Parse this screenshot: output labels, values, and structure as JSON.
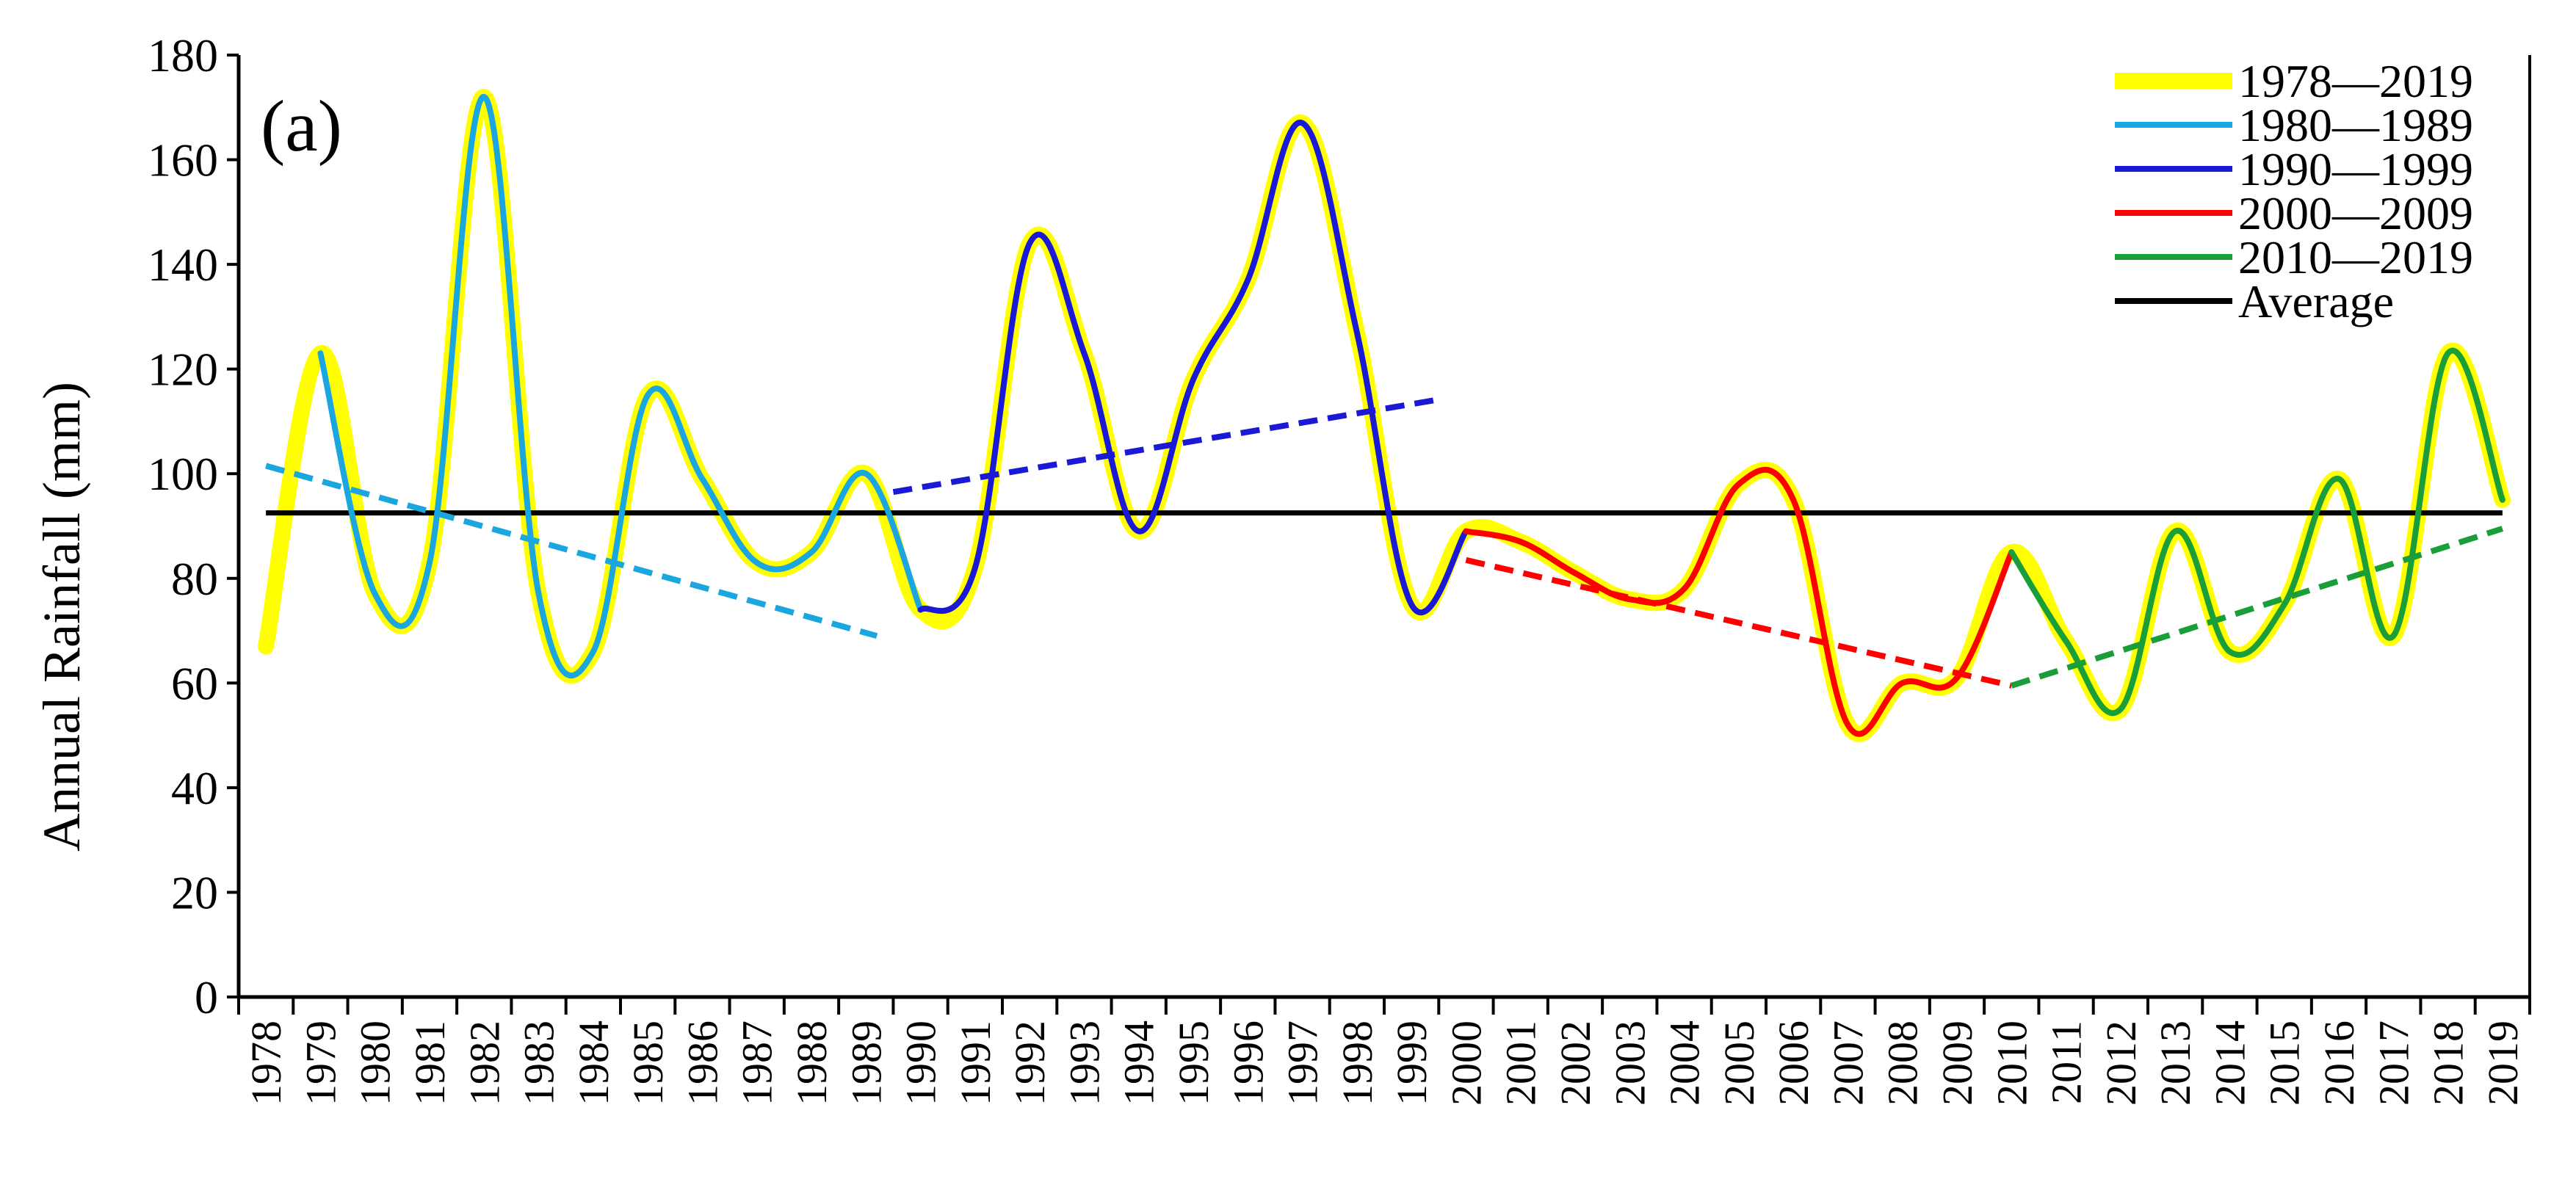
{
  "chart_data": {
    "type": "line",
    "panel_label": "(a)",
    "ylabel": "Annual Rainfall (mm)",
    "xlabel": "",
    "ylim": [
      0,
      180
    ],
    "yticks": [
      0,
      20,
      40,
      60,
      80,
      100,
      120,
      140,
      160,
      180
    ],
    "x": [
      1978,
      1979,
      1980,
      1981,
      1982,
      1983,
      1984,
      1985,
      1986,
      1987,
      1988,
      1989,
      1990,
      1991,
      1992,
      1993,
      1994,
      1995,
      1996,
      1997,
      1998,
      1999,
      2000,
      2001,
      2002,
      2003,
      2004,
      2005,
      2006,
      2007,
      2008,
      2009,
      2010,
      2011,
      2012,
      2013,
      2014,
      2015,
      2016,
      2017,
      2018,
      2019
    ],
    "xtick_labels": [
      "1978",
      "1979",
      "1980",
      "1981",
      "1982",
      "1983",
      "1984",
      "1985",
      "1986",
      "1987",
      "1988",
      "1989",
      "1990",
      "1991",
      "1992",
      "1993",
      "1994",
      "1995",
      "1996",
      "1997",
      "1998",
      "1999",
      "2000",
      "2001",
      "2002",
      "2003",
      "2004",
      "2005",
      "2006",
      "2007",
      "2008",
      "2009",
      "2010",
      "2011",
      "2012",
      "2013",
      "2014",
      "2015",
      "2016",
      "2017",
      "2018",
      "2019"
    ],
    "values": [
      67,
      123,
      77,
      83,
      172,
      77,
      66,
      115,
      99,
      83,
      85,
      100,
      74,
      82,
      144,
      123,
      89,
      118,
      137,
      167,
      127,
      75,
      89,
      87,
      81,
      76,
      78,
      98,
      95,
      52,
      60,
      61,
      85,
      68,
      55,
      89,
      66,
      75,
      99,
      69,
      123,
      95
    ],
    "average": 92.5,
    "grid": false,
    "legend_position": "top-right",
    "series": [
      {
        "name": "1978—2019",
        "color": "#ffff00",
        "range": [
          1978,
          2019
        ]
      },
      {
        "name": "1980—1989",
        "color": "#1aa7e0",
        "range": [
          1979,
          1990
        ]
      },
      {
        "name": "1990—1999",
        "color": "#1a1ad6",
        "range": [
          1990,
          2000
        ]
      },
      {
        "name": "2000—2009",
        "color": "#ff0000",
        "range": [
          2000,
          2010
        ]
      },
      {
        "name": "2010—2019",
        "color": "#1a9e3a",
        "range": [
          2010,
          2019
        ]
      },
      {
        "name": "Average",
        "color": "#000000"
      }
    ],
    "trendlines": [
      {
        "color": "#1aa7e0",
        "x": [
          1978,
          1989.2
        ],
        "y": [
          101.5,
          69
        ]
      },
      {
        "color": "#1a1ad6",
        "x": [
          1989.5,
          1999.4
        ],
        "y": [
          96.5,
          114
        ]
      },
      {
        "color": "#ff0000",
        "x": [
          2000,
          2010
        ],
        "y": [
          83.5,
          59.5
        ]
      },
      {
        "color": "#1a9e3a",
        "x": [
          2010,
          2019
        ],
        "y": [
          59.5,
          89.5
        ]
      }
    ]
  }
}
